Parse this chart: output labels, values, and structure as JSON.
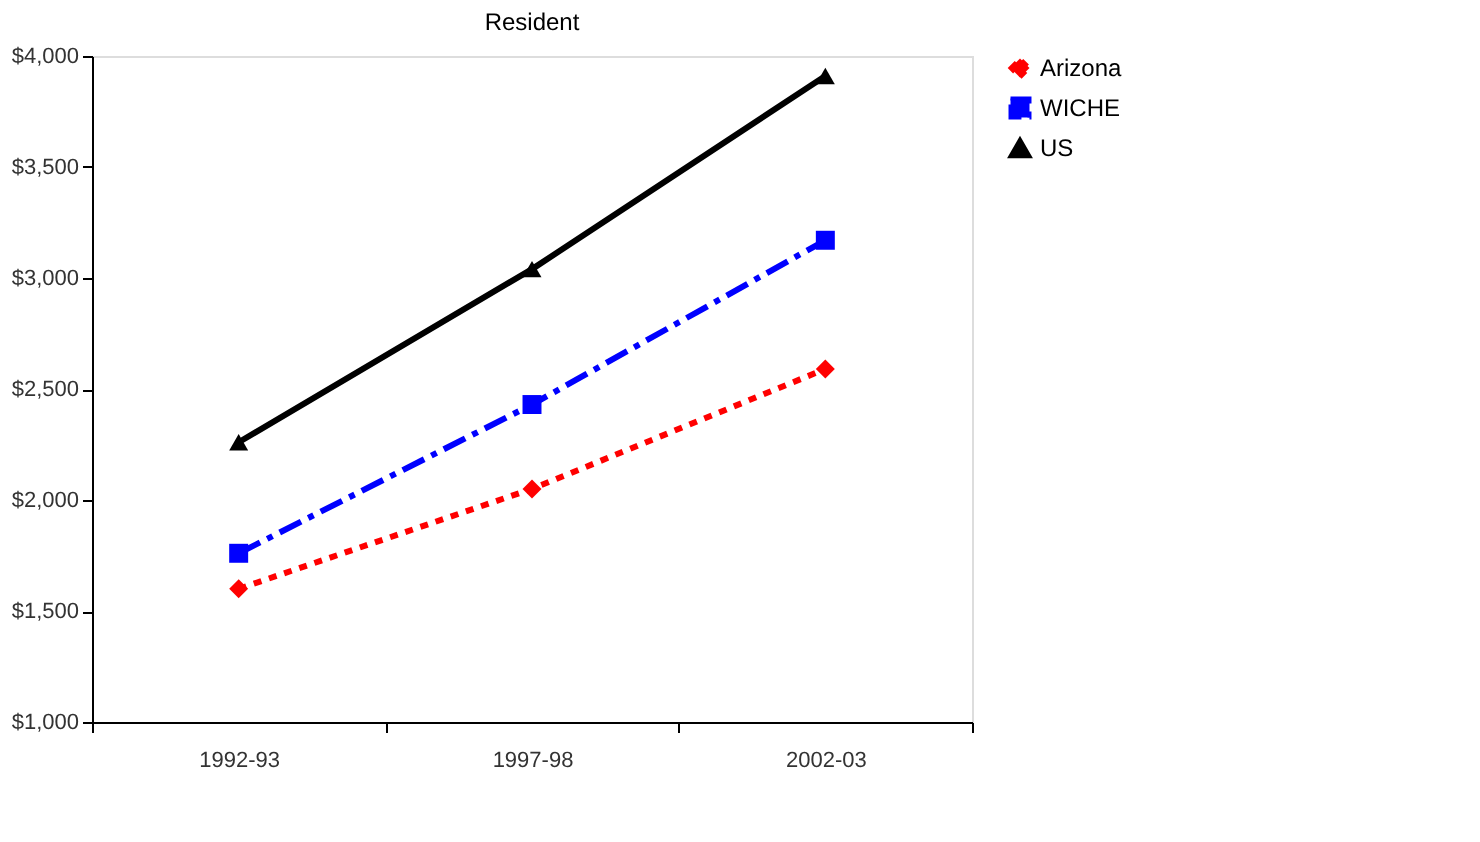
{
  "chart_data": {
    "type": "line",
    "title": "Resident",
    "categories": [
      "1992-93",
      "1997-98",
      "2002-03"
    ],
    "series": [
      {
        "name": "Arizona",
        "color": "#ff0000",
        "values": [
          1600,
          2050,
          2590
        ],
        "marker": "diamond",
        "line_style": "dotted"
      },
      {
        "name": "WICHE",
        "color": "#0000ff",
        "values": [
          1760,
          2430,
          3170
        ],
        "marker": "square",
        "line_style": "dashed"
      },
      {
        "name": "US",
        "color": "#000000",
        "values": [
          2260,
          3040,
          3910
        ],
        "marker": "triangle",
        "line_style": "solid"
      }
    ],
    "ylim": [
      1000,
      4000
    ],
    "yticks": [
      {
        "value": 1000,
        "label": "$1,000"
      },
      {
        "value": 1500,
        "label": "$1,500"
      },
      {
        "value": 2000,
        "label": "$2,000"
      },
      {
        "value": 2500,
        "label": "$2,500"
      },
      {
        "value": 3000,
        "label": "$3,000"
      },
      {
        "value": 3500,
        "label": "$3,500"
      },
      {
        "value": 4000,
        "label": "$4,000"
      }
    ],
    "grid": false,
    "legend": "right"
  }
}
